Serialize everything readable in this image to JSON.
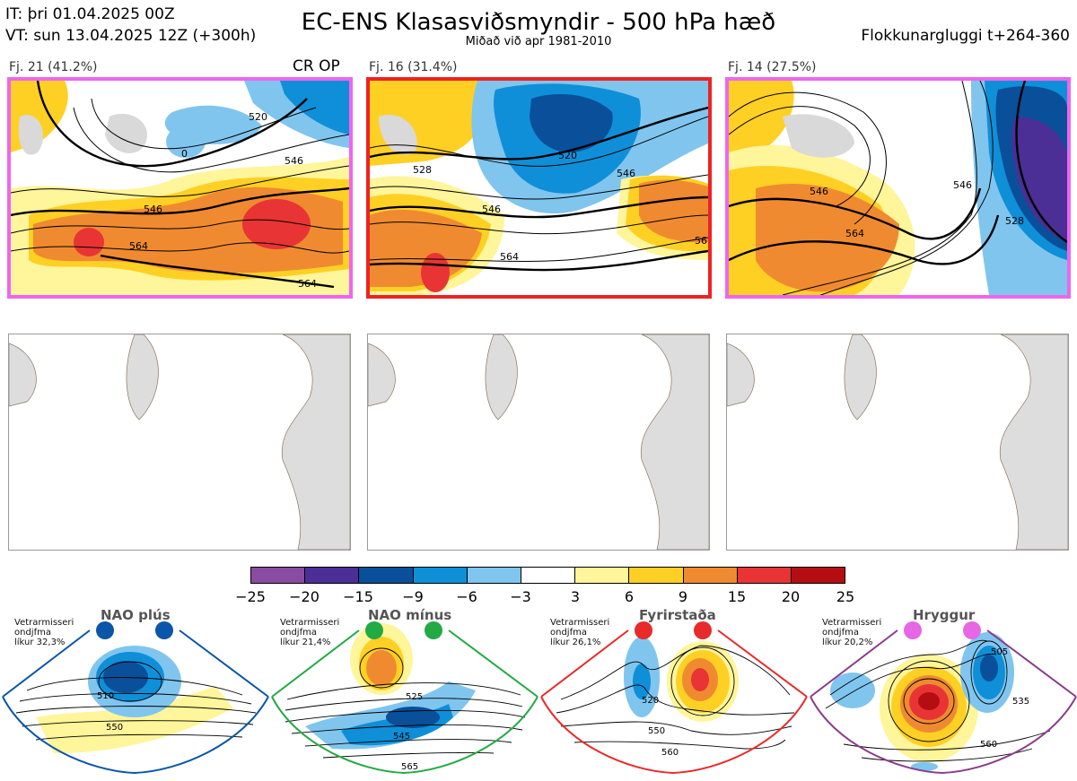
{
  "header": {
    "it": "IT: þri 01.04.2025 00Z",
    "vt": "VT: sun 13.04.2025 12Z  (+300h)",
    "title": "EC-ENS Klasasviðsmyndir - 500 hPa hæð",
    "subtitle": "Miðað við apr 1981-2010",
    "window": "Flokkunargluggi t+264-360"
  },
  "clusters": [
    {
      "label": "Fj. 21 (41.2%)",
      "flag": "CR OP",
      "frame_color": "#ee66ee",
      "contours": [
        "0",
        "520",
        "546",
        "546",
        "564",
        "564"
      ]
    },
    {
      "label": "Fj. 16 (31.4%)",
      "flag": "",
      "frame_color": "#ee2222",
      "contours": [
        "528",
        "520",
        "546",
        "546",
        "564",
        "56"
      ]
    },
    {
      "label": "Fj. 14 (27.5%)",
      "flag": "",
      "frame_color": "#ee66ee",
      "contours": [
        "546",
        "564",
        "546",
        "528"
      ]
    }
  ],
  "colorbar": {
    "ticks": [
      "−25",
      "−20",
      "−15",
      "−9",
      "−6",
      "−3",
      "3",
      "6",
      "9",
      "15",
      "20",
      "25"
    ],
    "colors": [
      "#8a4ca0",
      "#4b2f96",
      "#0a4f9a",
      "#0f8fd8",
      "#80c5ee",
      "#ffffff",
      "#fff59a",
      "#ffd024",
      "#f08a30",
      "#e83434",
      "#b50e12"
    ]
  },
  "regimes": [
    {
      "name": "NAO plús",
      "note": [
        "Vetrarmisseri",
        "ondjfma",
        "líkur 32,3%"
      ],
      "color": "#0a56a8",
      "contours": [
        "510",
        "550"
      ]
    },
    {
      "name": "NAO mínus",
      "note": [
        "Vetrarmisseri",
        "ondjfma",
        "líkur 21,4%"
      ],
      "color": "#22aa44",
      "contours": [
        "525",
        "545",
        "565"
      ]
    },
    {
      "name": "Fyrirstaða",
      "note": [
        "Vetrarmisseri",
        "ondjfma",
        "líkur 26,1%"
      ],
      "color": "#e82a2a",
      "contours": [
        "520",
        "550",
        "560"
      ]
    },
    {
      "name": "Hryggur",
      "note": [
        "Vetrarmisseri",
        "ondjfma",
        "líkur 20,2%"
      ],
      "color": "#e666e6",
      "contours": [
        "505",
        "535",
        "560"
      ]
    }
  ]
}
